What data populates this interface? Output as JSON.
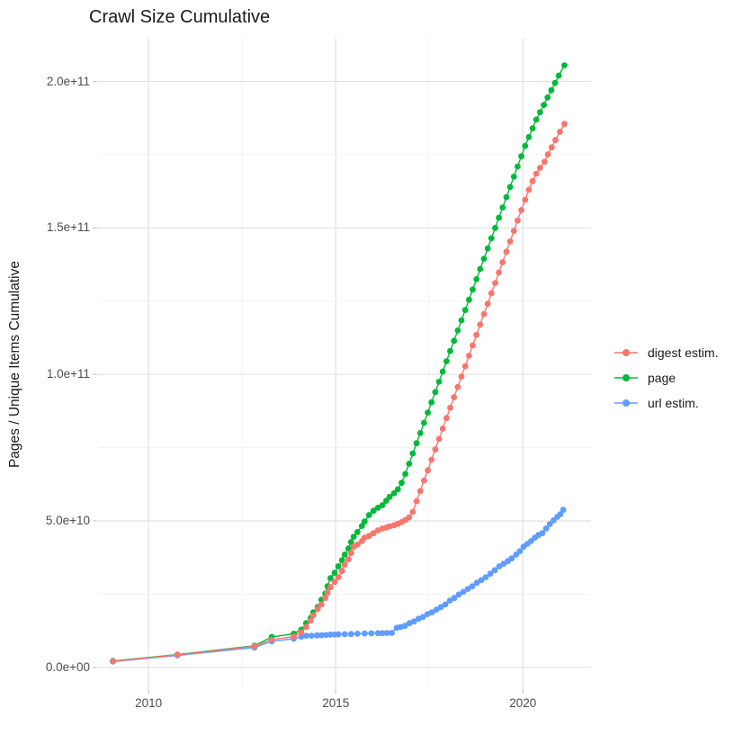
{
  "title": "Crawl Size Cumulative",
  "chart_data": {
    "type": "line",
    "title": "Crawl Size Cumulative",
    "xlabel": "",
    "ylabel": "Pages / Unique Items Cumulative",
    "grid": true,
    "legend_position": "right",
    "value_unit": "billions (1e9) of pages / unique items; x = calendar year",
    "x_range": [
      2008.65,
      2021.82
    ],
    "y_range": [
      -7.4,
      214.9
    ],
    "x_ticks": {
      "values": [
        2010,
        2015,
        2020
      ],
      "labels": [
        "2010",
        "2015",
        "2020"
      ]
    },
    "x_minor_ticks": [
      2012.5,
      2017.5
    ],
    "y_ticks": {
      "values": [
        0,
        50,
        100,
        150,
        200
      ],
      "labels": [
        "0.0e+00",
        "5.0e+10",
        "1.0e+11",
        "1.5e+11",
        "2.0e+11"
      ]
    },
    "y_minor_ticks": [
      25,
      75,
      125,
      175
    ],
    "series": [
      {
        "name": "digest estim.",
        "id": "digest-estim",
        "color": "#F8766D",
        "points": [
          [
            2009.05,
            2.1
          ],
          [
            2010.77,
            4.3
          ],
          [
            2012.83,
            7.2
          ],
          [
            2013.29,
            9.5
          ],
          [
            2013.88,
            10.5
          ],
          [
            2014.08,
            12
          ],
          [
            2014.21,
            13.8
          ],
          [
            2014.33,
            16
          ],
          [
            2014.4,
            17.8
          ],
          [
            2014.52,
            20
          ],
          [
            2014.62,
            21.5
          ],
          [
            2014.72,
            23.7
          ],
          [
            2014.78,
            25.5
          ],
          [
            2014.86,
            27.4
          ],
          [
            2014.97,
            29.2
          ],
          [
            2015.07,
            30.8
          ],
          [
            2015.17,
            32.9
          ],
          [
            2015.24,
            35.1
          ],
          [
            2015.34,
            36.9
          ],
          [
            2015.41,
            39.1
          ],
          [
            2015.48,
            41.2
          ],
          [
            2015.58,
            41.9
          ],
          [
            2015.7,
            43.1
          ],
          [
            2015.77,
            44.3
          ],
          [
            2015.89,
            44.9
          ],
          [
            2016.01,
            45.8
          ],
          [
            2016.13,
            46.8
          ],
          [
            2016.25,
            47.4
          ],
          [
            2016.35,
            47.7
          ],
          [
            2016.44,
            48.1
          ],
          [
            2016.56,
            48.5
          ],
          [
            2016.66,
            49
          ],
          [
            2016.76,
            49.6
          ],
          [
            2016.86,
            50.3
          ],
          [
            2016.96,
            51.2
          ],
          [
            2017.06,
            53.1
          ],
          [
            2017.16,
            56.7
          ],
          [
            2017.26,
            60.2
          ],
          [
            2017.36,
            63.8
          ],
          [
            2017.46,
            67.3
          ],
          [
            2017.56,
            70.9
          ],
          [
            2017.66,
            74.4
          ],
          [
            2017.76,
            78
          ],
          [
            2017.86,
            81.5
          ],
          [
            2017.96,
            85.1
          ],
          [
            2018.06,
            88.6
          ],
          [
            2018.16,
            92.2
          ],
          [
            2018.26,
            95.7
          ],
          [
            2018.36,
            99.3
          ],
          [
            2018.46,
            102.8
          ],
          [
            2018.56,
            106.4
          ],
          [
            2018.66,
            109.9
          ],
          [
            2018.76,
            113.5
          ],
          [
            2018.86,
            117
          ],
          [
            2018.96,
            120.6
          ],
          [
            2019.06,
            124.1
          ],
          [
            2019.16,
            127.7
          ],
          [
            2019.26,
            131.2
          ],
          [
            2019.36,
            134.8
          ],
          [
            2019.46,
            138.3
          ],
          [
            2019.56,
            141.9
          ],
          [
            2019.66,
            145.4
          ],
          [
            2019.76,
            149
          ],
          [
            2019.86,
            152.5
          ],
          [
            2019.96,
            156.1
          ],
          [
            2020.06,
            159.6
          ],
          [
            2020.16,
            163
          ],
          [
            2020.26,
            166
          ],
          [
            2020.36,
            168.5
          ],
          [
            2020.46,
            170.5
          ],
          [
            2020.58,
            172.6
          ],
          [
            2020.67,
            175.1
          ],
          [
            2020.77,
            177.5
          ],
          [
            2020.87,
            180
          ],
          [
            2020.99,
            182.8
          ],
          [
            2021.11,
            185.5
          ]
        ]
      },
      {
        "name": "page",
        "id": "page",
        "color": "#00BA38",
        "points": [
          [
            2009.05,
            2.2
          ],
          [
            2010.77,
            4.4
          ],
          [
            2012.83,
            7.4
          ],
          [
            2013.29,
            10.4
          ],
          [
            2013.88,
            11.5
          ],
          [
            2014.08,
            12.9
          ],
          [
            2014.21,
            15.1
          ],
          [
            2014.33,
            16.9
          ],
          [
            2014.4,
            18.8
          ],
          [
            2014.52,
            20.6
          ],
          [
            2014.62,
            23.1
          ],
          [
            2014.72,
            25.2
          ],
          [
            2014.78,
            27.7
          ],
          [
            2014.86,
            30.5
          ],
          [
            2014.97,
            32.3
          ],
          [
            2015.07,
            34.5
          ],
          [
            2015.17,
            36.6
          ],
          [
            2015.24,
            38.5
          ],
          [
            2015.34,
            40.6
          ],
          [
            2015.41,
            42.8
          ],
          [
            2015.48,
            44.6
          ],
          [
            2015.58,
            46.2
          ],
          [
            2015.7,
            48.3
          ],
          [
            2015.77,
            49.8
          ],
          [
            2015.89,
            52
          ],
          [
            2016.01,
            53.5
          ],
          [
            2016.13,
            54.5
          ],
          [
            2016.25,
            55.4
          ],
          [
            2016.35,
            56.9
          ],
          [
            2016.44,
            58.2
          ],
          [
            2016.56,
            59.4
          ],
          [
            2016.66,
            60.8
          ],
          [
            2016.76,
            63
          ],
          [
            2016.86,
            66
          ],
          [
            2016.96,
            69.5
          ],
          [
            2017.06,
            73
          ],
          [
            2017.16,
            76.5
          ],
          [
            2017.26,
            80
          ],
          [
            2017.36,
            83.5
          ],
          [
            2017.46,
            87
          ],
          [
            2017.56,
            90.5
          ],
          [
            2017.66,
            94
          ],
          [
            2017.76,
            97.5
          ],
          [
            2017.86,
            101
          ],
          [
            2017.96,
            104.5
          ],
          [
            2018.06,
            108
          ],
          [
            2018.16,
            111.5
          ],
          [
            2018.26,
            115
          ],
          [
            2018.36,
            118.5
          ],
          [
            2018.46,
            122
          ],
          [
            2018.56,
            125.5
          ],
          [
            2018.66,
            129
          ],
          [
            2018.76,
            132.5
          ],
          [
            2018.86,
            136
          ],
          [
            2018.96,
            139.5
          ],
          [
            2019.06,
            143
          ],
          [
            2019.16,
            146.5
          ],
          [
            2019.26,
            150
          ],
          [
            2019.36,
            153.5
          ],
          [
            2019.46,
            157
          ],
          [
            2019.56,
            160.5
          ],
          [
            2019.66,
            164
          ],
          [
            2019.76,
            167.5
          ],
          [
            2019.86,
            171
          ],
          [
            2019.96,
            174.5
          ],
          [
            2020.06,
            178
          ],
          [
            2020.16,
            181
          ],
          [
            2020.26,
            184
          ],
          [
            2020.36,
            187
          ],
          [
            2020.46,
            189.5
          ],
          [
            2020.56,
            192
          ],
          [
            2020.66,
            194.5
          ],
          [
            2020.76,
            197
          ],
          [
            2020.86,
            199.5
          ],
          [
            2020.96,
            202
          ],
          [
            2021.11,
            205.5
          ]
        ]
      },
      {
        "name": "url estim.",
        "id": "url-estim",
        "color": "#619CFF",
        "points": [
          [
            2009.05,
            2
          ],
          [
            2010.77,
            4.1
          ],
          [
            2012.83,
            6.8
          ],
          [
            2013.29,
            8.9
          ],
          [
            2013.88,
            9.8
          ],
          [
            2014.08,
            10.5
          ],
          [
            2014.21,
            10.8
          ],
          [
            2014.35,
            10.85
          ],
          [
            2014.5,
            10.95
          ],
          [
            2014.62,
            11
          ],
          [
            2014.74,
            11.05
          ],
          [
            2014.86,
            11.2
          ],
          [
            2014.97,
            11.25
          ],
          [
            2015.07,
            11.3
          ],
          [
            2015.24,
            11.35
          ],
          [
            2015.41,
            11.4
          ],
          [
            2015.58,
            11.5
          ],
          [
            2015.77,
            11.6
          ],
          [
            2015.95,
            11.65
          ],
          [
            2016.13,
            11.7
          ],
          [
            2016.25,
            11.7
          ],
          [
            2016.37,
            11.75
          ],
          [
            2016.5,
            11.8
          ],
          [
            2016.63,
            13.5
          ],
          [
            2016.73,
            13.8
          ],
          [
            2016.85,
            14.2
          ],
          [
            2016.97,
            15.1
          ],
          [
            2017.09,
            15.7
          ],
          [
            2017.21,
            16.6
          ],
          [
            2017.33,
            17.2
          ],
          [
            2017.45,
            18.2
          ],
          [
            2017.57,
            18.8
          ],
          [
            2017.69,
            19.7
          ],
          [
            2017.81,
            20.6
          ],
          [
            2017.93,
            21.5
          ],
          [
            2018.05,
            22.8
          ],
          [
            2018.17,
            23.7
          ],
          [
            2018.29,
            24.9
          ],
          [
            2018.41,
            25.8
          ],
          [
            2018.53,
            26.8
          ],
          [
            2018.65,
            27.7
          ],
          [
            2018.77,
            28.9
          ],
          [
            2018.89,
            29.8
          ],
          [
            2019.01,
            30.8
          ],
          [
            2019.13,
            32
          ],
          [
            2019.25,
            33.2
          ],
          [
            2019.37,
            34.5
          ],
          [
            2019.49,
            35.4
          ],
          [
            2019.6,
            36.3
          ],
          [
            2019.7,
            37.2
          ],
          [
            2019.82,
            38.5
          ],
          [
            2019.92,
            39.7
          ],
          [
            2020.02,
            41.2
          ],
          [
            2020.12,
            42.2
          ],
          [
            2020.22,
            43.1
          ],
          [
            2020.32,
            44.3
          ],
          [
            2020.42,
            45.2
          ],
          [
            2020.52,
            45.8
          ],
          [
            2020.62,
            47.4
          ],
          [
            2020.72,
            48.9
          ],
          [
            2020.82,
            50.2
          ],
          [
            2020.92,
            51.4
          ],
          [
            2021,
            52.3
          ],
          [
            2021.08,
            53.8
          ]
        ]
      }
    ]
  }
}
